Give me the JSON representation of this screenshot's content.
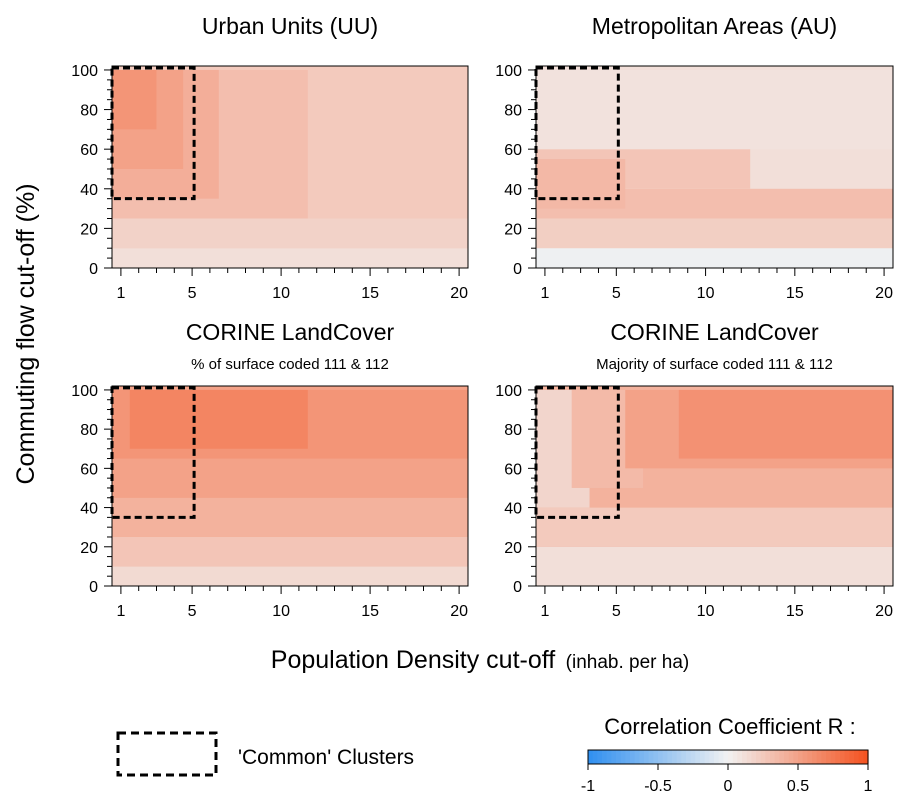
{
  "x_axis": {
    "label": "Population Density cut-off",
    "unit": "(inhab. per ha)"
  },
  "y_axis": {
    "label": "Commuting flow cut-off (%)"
  },
  "legend": {
    "common_clusters": "'Common' Clusters"
  },
  "colorbar": {
    "title": "Correlation Coefficient R :",
    "ticks": [
      "-1",
      "-0.5",
      "0",
      "0.5",
      "1"
    ],
    "range": [
      -1,
      1
    ],
    "colors": {
      "negative": "#2f8ff0",
      "zero": "#f2f2f2",
      "positive": "#f4511e"
    }
  },
  "chart_data": [
    {
      "type": "heatmap",
      "title": "Urban Units (UU)",
      "subtitle": "",
      "x": {
        "range": [
          1,
          20
        ],
        "ticks": [
          "1",
          "5",
          "10",
          "15",
          "20"
        ]
      },
      "y": {
        "range": [
          0,
          100
        ],
        "ticks": [
          "0",
          "20",
          "40",
          "60",
          "80",
          "100"
        ]
      },
      "common_clusters_box": {
        "x": [
          1,
          5
        ],
        "y": [
          35,
          100
        ]
      },
      "base": 0.25,
      "regions": [
        {
          "x": [
            1,
            20
          ],
          "y": [
            0,
            10
          ],
          "value": 0.12
        },
        {
          "x": [
            1,
            20
          ],
          "y": [
            10,
            25
          ],
          "value": 0.2
        },
        {
          "x": [
            1,
            11
          ],
          "y": [
            25,
            100
          ],
          "value": 0.32
        },
        {
          "x": [
            1,
            6
          ],
          "y": [
            35,
            100
          ],
          "value": 0.42
        },
        {
          "x": [
            1,
            4
          ],
          "y": [
            50,
            100
          ],
          "value": 0.5
        },
        {
          "x": [
            1,
            2.5
          ],
          "y": [
            70,
            100
          ],
          "value": 0.58
        }
      ]
    },
    {
      "type": "heatmap",
      "title": "Metropolitan Areas (AU)",
      "subtitle": "",
      "x": {
        "range": [
          1,
          20
        ],
        "ticks": [
          "1",
          "5",
          "10",
          "15",
          "20"
        ]
      },
      "y": {
        "range": [
          0,
          100
        ],
        "ticks": [
          "0",
          "20",
          "40",
          "60",
          "80",
          "100"
        ]
      },
      "common_clusters_box": {
        "x": [
          1,
          5
        ],
        "y": [
          35,
          100
        ]
      },
      "base": 0.12,
      "regions": [
        {
          "x": [
            1,
            20
          ],
          "y": [
            0,
            10
          ],
          "value": -0.02
        },
        {
          "x": [
            1,
            20
          ],
          "y": [
            10,
            25
          ],
          "value": 0.22
        },
        {
          "x": [
            1,
            20
          ],
          "y": [
            25,
            40
          ],
          "value": 0.32
        },
        {
          "x": [
            1,
            12
          ],
          "y": [
            40,
            60
          ],
          "value": 0.28
        },
        {
          "x": [
            1,
            9
          ],
          "y": [
            60,
            100
          ],
          "value": 0.2
        },
        {
          "x": [
            1,
            20
          ],
          "y": [
            60,
            100
          ],
          "value": 0.1
        },
        {
          "x": [
            1,
            5
          ],
          "y": [
            30,
            55
          ],
          "value": 0.36
        }
      ]
    },
    {
      "type": "heatmap",
      "title": "CORINE LandCover",
      "subtitle": "% of surface coded 111 & 112",
      "x": {
        "range": [
          1,
          20
        ],
        "ticks": [
          "1",
          "5",
          "10",
          "15",
          "20"
        ]
      },
      "y": {
        "range": [
          0,
          100
        ],
        "ticks": [
          "0",
          "20",
          "40",
          "60",
          "80",
          "100"
        ]
      },
      "common_clusters_box": {
        "x": [
          1,
          5
        ],
        "y": [
          35,
          100
        ]
      },
      "base": 0.5,
      "regions": [
        {
          "x": [
            1,
            20
          ],
          "y": [
            0,
            10
          ],
          "value": 0.15
        },
        {
          "x": [
            1,
            20
          ],
          "y": [
            10,
            25
          ],
          "value": 0.28
        },
        {
          "x": [
            1,
            20
          ],
          "y": [
            25,
            45
          ],
          "value": 0.4
        },
        {
          "x": [
            1,
            20
          ],
          "y": [
            45,
            65
          ],
          "value": 0.5
        },
        {
          "x": [
            1,
            20
          ],
          "y": [
            65,
            100
          ],
          "value": 0.58
        },
        {
          "x": [
            2,
            11
          ],
          "y": [
            70,
            100
          ],
          "value": 0.68
        }
      ]
    },
    {
      "type": "heatmap",
      "title": "CORINE LandCover",
      "subtitle": "Majority of surface coded 111 & 112",
      "x": {
        "range": [
          1,
          20
        ],
        "ticks": [
          "1",
          "5",
          "10",
          "15",
          "20"
        ]
      },
      "y": {
        "range": [
          0,
          100
        ],
        "ticks": [
          "0",
          "20",
          "40",
          "60",
          "80",
          "100"
        ]
      },
      "common_clusters_box": {
        "x": [
          1,
          5
        ],
        "y": [
          35,
          100
        ]
      },
      "base": 0.4,
      "regions": [
        {
          "x": [
            1,
            20
          ],
          "y": [
            0,
            20
          ],
          "value": 0.12
        },
        {
          "x": [
            1,
            20
          ],
          "y": [
            20,
            40
          ],
          "value": 0.25
        },
        {
          "x": [
            1,
            20
          ],
          "y": [
            40,
            60
          ],
          "value": 0.4
        },
        {
          "x": [
            1,
            3
          ],
          "y": [
            40,
            100
          ],
          "value": 0.18
        },
        {
          "x": [
            3,
            6
          ],
          "y": [
            50,
            100
          ],
          "value": 0.35
        },
        {
          "x": [
            6,
            20
          ],
          "y": [
            60,
            100
          ],
          "value": 0.5
        },
        {
          "x": [
            9,
            20
          ],
          "y": [
            65,
            100
          ],
          "value": 0.6
        }
      ]
    }
  ]
}
